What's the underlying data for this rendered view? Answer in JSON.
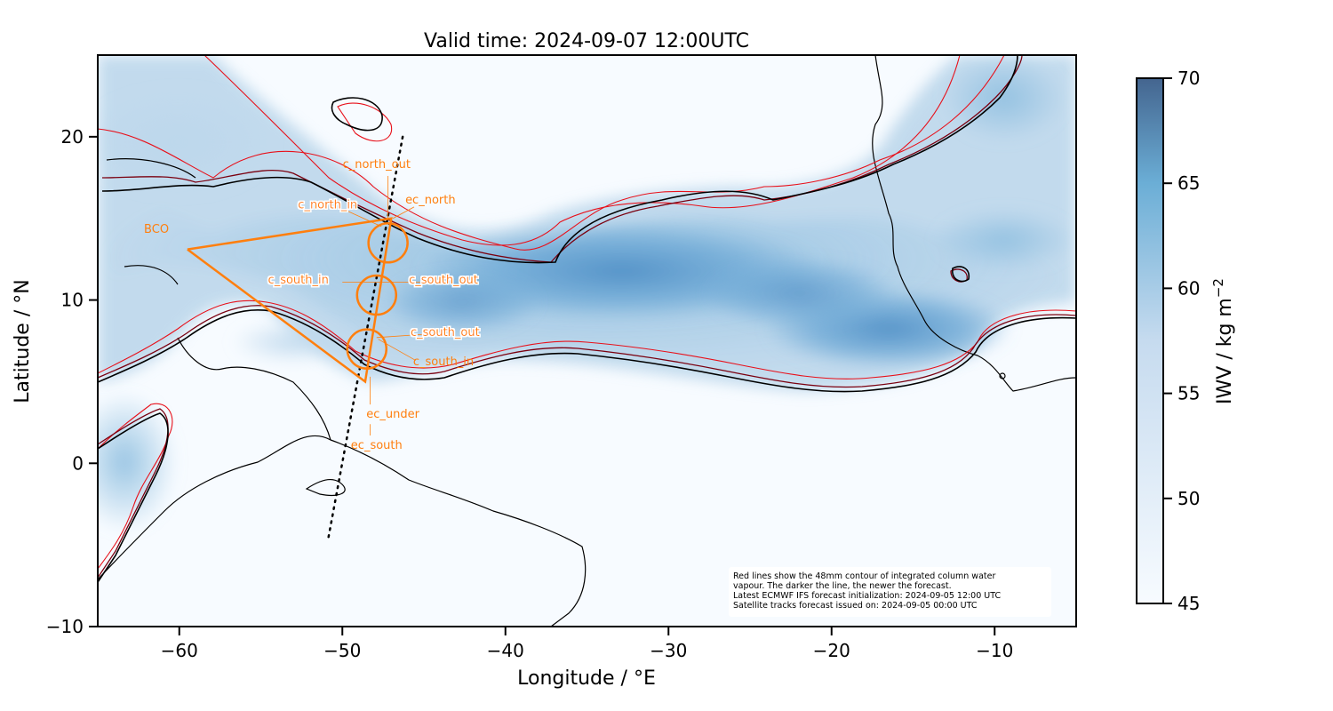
{
  "title": "Valid time: 2024-09-07 12:00UTC",
  "x_axis": {
    "label": "Longitude / °E",
    "ticks": [
      {
        "value": -60,
        "label": "−60"
      },
      {
        "value": -50,
        "label": "−50"
      },
      {
        "value": -40,
        "label": "−40"
      },
      {
        "value": -30,
        "label": "−30"
      },
      {
        "value": -20,
        "label": "−20"
      },
      {
        "value": -10,
        "label": "−10"
      }
    ],
    "range": [
      -65,
      -5
    ]
  },
  "y_axis": {
    "label": "Latitude / °N",
    "ticks": [
      {
        "value": 20,
        "label": "20"
      },
      {
        "value": 10,
        "label": "10"
      },
      {
        "value": 0,
        "label": "0"
      },
      {
        "value": -10,
        "label": "−10"
      }
    ],
    "range": [
      -10,
      25
    ]
  },
  "colorbar": {
    "label_main": "IWV / kg m",
    "label_exp": "−2",
    "ticks": [
      {
        "value": 45,
        "label": "45"
      },
      {
        "value": 50,
        "label": "50"
      },
      {
        "value": 55,
        "label": "55"
      },
      {
        "value": 60,
        "label": "60"
      },
      {
        "value": 65,
        "label": "65"
      },
      {
        "value": 70,
        "label": "70"
      }
    ],
    "range": [
      45,
      70
    ],
    "color_low": "#f7fbff",
    "color_mid": "#6baed6",
    "color_high": "#44658f"
  },
  "colors": {
    "flight_track": "#ff7f0e",
    "contour_newest": "#000000",
    "contour_mid": "#7a0010",
    "contour_old": "#e8101a",
    "coastline": "#000000"
  },
  "note_lines": [
    "Red lines show the 48mm contour of integrated column water",
    "vapour. The darker the line, the newer the forecast.",
    "Latest ECMWF IFS forecast initialization: 2024-09-05 12:00 UTC",
    "Satellite tracks forecast issued on: 2024-09-05 00:00 UTC"
  ],
  "flight_plan": {
    "track": [
      {
        "lon": -59.5,
        "lat": 13.1
      },
      {
        "lon": -47.0,
        "lat": 15.0
      },
      {
        "lon": -48.6,
        "lat": 5.0
      },
      {
        "lon": -59.5,
        "lat": 13.1
      }
    ],
    "circles": [
      {
        "lon": -47.2,
        "lat": 13.5
      },
      {
        "lon": -47.9,
        "lat": 10.3
      },
      {
        "lon": -48.5,
        "lat": 7.0
      }
    ],
    "satellite_track": [
      {
        "lon": -46.3,
        "lat": 20.0
      },
      {
        "lon": -50.9,
        "lat": -4.8
      }
    ],
    "labels": [
      {
        "id": "BCO",
        "text": "BCO",
        "lon": -61.4,
        "lat": 14.1,
        "halo": false
      },
      {
        "id": "c_north_out",
        "text": "c_north_out",
        "lon": -47.9,
        "lat": 18.1,
        "halo": false
      },
      {
        "id": "ec_north",
        "text": "ec_north",
        "lon": -44.6,
        "lat": 15.9,
        "halo": false
      },
      {
        "id": "c_north_in",
        "text": "c_north_in",
        "lon": -50.9,
        "lat": 15.6,
        "halo": true
      },
      {
        "id": "c_south_in_1",
        "text": "c_south_in",
        "lon": -52.7,
        "lat": 11.0,
        "halo": true
      },
      {
        "id": "c_south_out_1",
        "text": "c_south_out",
        "lon": -43.8,
        "lat": 11.0,
        "halo": true
      },
      {
        "id": "c_south_out_2",
        "text": "c_south_out",
        "lon": -43.7,
        "lat": 7.8,
        "halo": true
      },
      {
        "id": "c_south_in_2",
        "text": "c_south_in",
        "lon": -43.8,
        "lat": 6.0,
        "halo": false
      },
      {
        "id": "ec_under",
        "text": "ec_under",
        "lon": -46.9,
        "lat": 2.8,
        "halo": false
      },
      {
        "id": "ec_south",
        "text": "ec_south",
        "lon": -47.9,
        "lat": 0.9,
        "halo": false
      }
    ]
  }
}
